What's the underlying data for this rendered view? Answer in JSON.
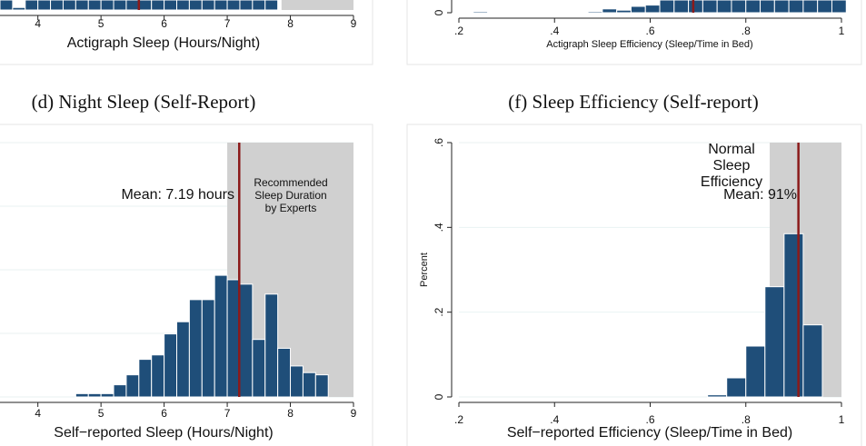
{
  "captions": {
    "left": "(d) Night Sleep (Self-Report)",
    "right": "(f) Sleep Efficiency (Self-report)"
  },
  "colors": {
    "bar": "#1f4e79",
    "mean_line": "#8b1a1a",
    "shade": "#d0d0d0",
    "panel_border": "#e6e6e6",
    "grid": "#eaf2f2"
  },
  "chart_data": [
    {
      "panel": "top-left (partial)",
      "type": "bar",
      "xlabel": "Actigraph Sleep (Hours/Night)",
      "xticks": [
        "4",
        "5",
        "6",
        "7",
        "8",
        "9"
      ],
      "xlim": [
        3.4,
        9.0
      ],
      "shaded_range": [
        7.86,
        9.0
      ],
      "mean": 5.6,
      "bin_width": 0.2,
      "bins_start": 3.4,
      "values": [
        0.2,
        0.05,
        0.2,
        0.2,
        0.2,
        0.2,
        0.2,
        0.2,
        0.2,
        0.2,
        0.2,
        0.2,
        0.2,
        0.2,
        0.2,
        0.2,
        0.2,
        0.2,
        0.2,
        0.2,
        0.2,
        0.2
      ]
    },
    {
      "panel": "top-right (partial)",
      "type": "bar",
      "xlabel": "Actigraph Sleep Efficiency (Sleep/Time in Bed)",
      "xticks": [
        ".2",
        ".4",
        ".6",
        ".8",
        "1"
      ],
      "yticks": [
        "0"
      ],
      "xlim": [
        0.2,
        1.0
      ],
      "shaded_range": [
        0.87,
        1.0
      ],
      "mean": 0.69,
      "bin_width": 0.03,
      "bins_start": 0.2,
      "values": [
        0,
        0.02,
        0,
        0,
        0,
        0,
        0,
        0,
        0,
        0.02,
        0.06,
        0.04,
        0.1,
        0.12,
        0.2,
        0.2,
        0.2,
        0.2,
        0.2,
        0.2,
        0.2,
        0.2,
        0.2,
        0.2,
        0.2,
        0.2,
        0.2
      ]
    },
    {
      "panel": "d",
      "type": "bar",
      "title": "(d) Night Sleep (Self-Report)",
      "xlabel": "Self−reported Sleep (Hours/Night)",
      "xticks": [
        "4",
        "5",
        "6",
        "7",
        "8",
        "9"
      ],
      "xlim": [
        3.4,
        9.0
      ],
      "ylim": [
        0,
        0.23
      ],
      "shaded_range": [
        7.0,
        9.0
      ],
      "shaded_label": [
        "Recommended",
        "Sleep Duration",
        "by Experts"
      ],
      "mean": 7.19,
      "mean_label": "Mean: 7.19 hours",
      "bin_width": 0.2,
      "bins_start": 4.6,
      "values": [
        0.003,
        0.003,
        0.003,
        0.011,
        0.02,
        0.034,
        0.038,
        0.057,
        0.068,
        0.088,
        0.088,
        0.11,
        0.106,
        0.102,
        0.052,
        0.093,
        0.044,
        0.028,
        0.022,
        0.02
      ]
    },
    {
      "panel": "f",
      "type": "bar",
      "title": "(f) Sleep Efficiency (Self-report)",
      "xlabel": "Self−reported Efficiency (Sleep/Time in Bed)",
      "ylabel": "Percent",
      "xticks": [
        ".2",
        ".4",
        ".6",
        ".8",
        "1"
      ],
      "yticks": [
        "0",
        ".2",
        ".4",
        ".6"
      ],
      "xlim": [
        0.2,
        1.0
      ],
      "ylim": [
        0,
        0.6
      ],
      "shaded_range": [
        0.85,
        1.0
      ],
      "shaded_label": [
        "Normal",
        "Sleep",
        "Efficiency"
      ],
      "mean": 0.91,
      "mean_label": "Mean: 91%",
      "bin_width": 0.04,
      "bins_start": 0.72,
      "values": [
        0.005,
        0.045,
        0.12,
        0.26,
        0.385,
        0.17
      ]
    }
  ]
}
